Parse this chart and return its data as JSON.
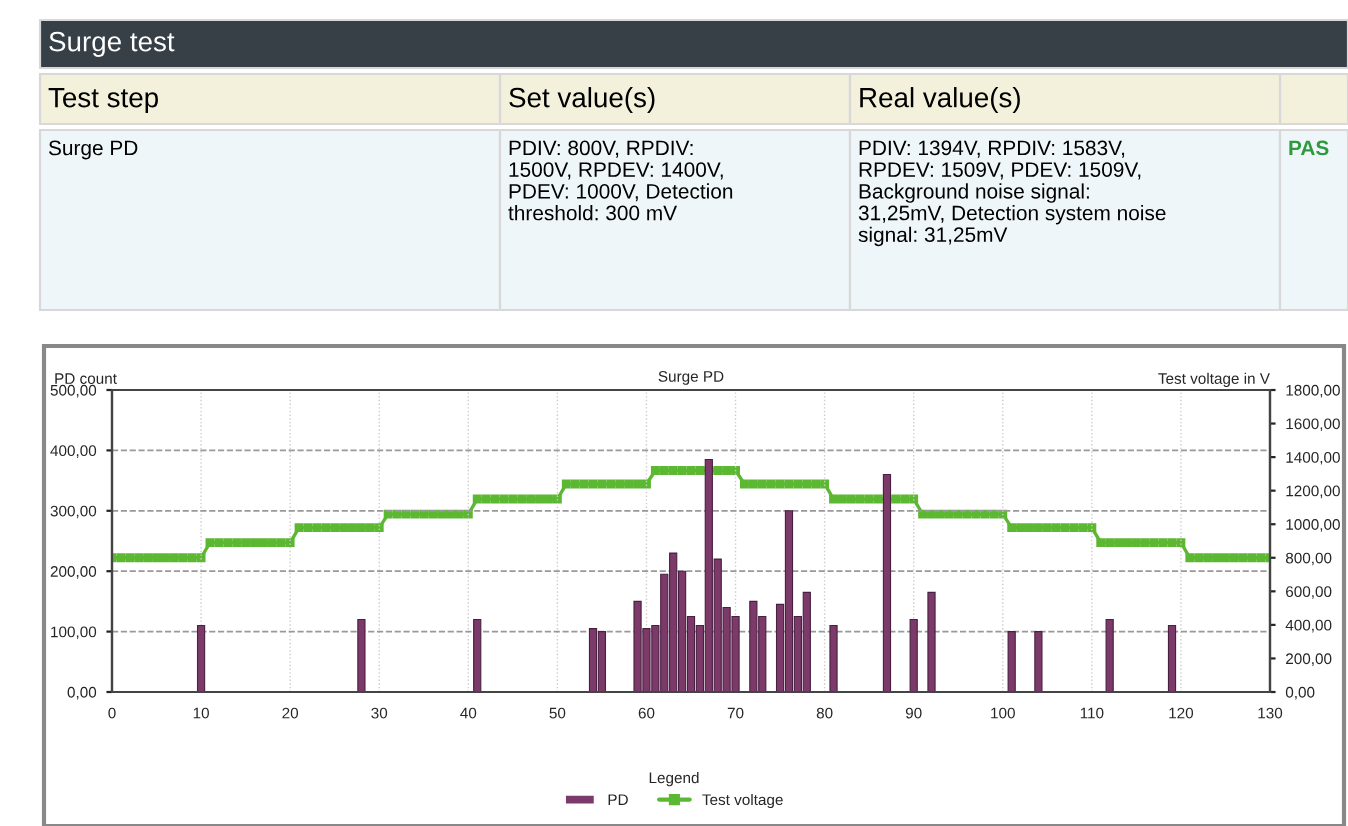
{
  "chart_data": {
    "type": "bar",
    "title": "Surge PD",
    "ylabel": "PD count",
    "y2label": "Test voltage in V",
    "legend_title": "Legend",
    "annotations": [
      "Surge test",
      "Test step",
      "Set value(s)",
      "Real value(s)",
      "Surge PD",
      "PDIV: 800V, RPDIV:\n1500V, RPDEV: 1400V,\nPDEV: 1000V, Detection\nthreshold: 300 mV",
      "PDIV: 1394V, RPDIV: 1583V,\nRPDEV: 1509V, PDEV: 1509V,\nBackground noise signal:\n31,25mV, Detection system noise\nsignal: 31,25mV",
      "PAS"
    ],
    "xlim": [
      0,
      130
    ],
    "xticks": [
      0,
      10,
      20,
      30,
      40,
      50,
      60,
      70,
      80,
      90,
      100,
      110,
      120,
      130
    ],
    "ylim": [
      0,
      500
    ],
    "yticks": [
      {
        "value": 0,
        "label": "0,00"
      },
      {
        "value": 100,
        "label": "100,00"
      },
      {
        "value": 200,
        "label": "200,00"
      },
      {
        "value": 300,
        "label": "300,00"
      },
      {
        "value": 400,
        "label": "400,00"
      },
      {
        "value": 500,
        "label": "500,00"
      }
    ],
    "y2lim": [
      0,
      1800
    ],
    "y2ticks": [
      {
        "value": 0,
        "label": "0,00"
      },
      {
        "value": 200,
        "label": "200,00"
      },
      {
        "value": 400,
        "label": "400,00"
      },
      {
        "value": 600,
        "label": "600,00"
      },
      {
        "value": 800,
        "label": "800,00"
      },
      {
        "value": 1000,
        "label": "1000,00"
      },
      {
        "value": 1200,
        "label": "1200,00"
      },
      {
        "value": 1400,
        "label": "1400,00"
      },
      {
        "value": 1600,
        "label": "1600,00"
      },
      {
        "value": 1800,
        "label": "1800,00"
      }
    ],
    "grid": true,
    "legend": "bottom",
    "series": [
      {
        "name": "PD",
        "color": "#7b3a6a",
        "x": [
          10,
          28,
          41,
          54,
          55,
          59,
          60,
          61,
          62,
          63,
          64,
          65,
          66,
          67,
          68,
          69,
          70,
          72,
          73,
          75,
          76,
          77,
          78,
          81,
          87,
          90,
          92,
          101,
          104,
          112,
          119
        ],
        "values": [
          110,
          120,
          120,
          105,
          100,
          150,
          105,
          110,
          195,
          230,
          200,
          125,
          110,
          385,
          220,
          140,
          125,
          150,
          125,
          145,
          300,
          125,
          165,
          110,
          360,
          120,
          165,
          100,
          100,
          120,
          110
        ]
      },
      {
        "name": "Test voltage",
        "type": "line",
        "axis": "y2",
        "color": "#5cb832",
        "marker": "square",
        "line_style": "solid",
        "x": [
          0,
          1,
          2,
          3,
          4,
          5,
          6,
          7,
          8,
          9,
          10,
          11,
          12,
          13,
          14,
          15,
          16,
          17,
          18,
          19,
          20,
          21,
          22,
          23,
          24,
          25,
          26,
          27,
          28,
          29,
          30,
          31,
          32,
          33,
          34,
          35,
          36,
          37,
          38,
          39,
          40,
          41,
          42,
          43,
          44,
          45,
          46,
          47,
          48,
          49,
          50,
          51,
          52,
          53,
          54,
          55,
          56,
          57,
          58,
          59,
          60,
          61,
          62,
          63,
          64,
          65,
          66,
          67,
          68,
          69,
          70,
          71,
          72,
          73,
          74,
          75,
          76,
          77,
          78,
          79,
          80,
          81,
          82,
          83,
          84,
          85,
          86,
          87,
          88,
          89,
          90,
          91,
          92,
          93,
          94,
          95,
          96,
          97,
          98,
          99,
          100,
          101,
          102,
          103,
          104,
          105,
          106,
          107,
          108,
          109,
          110,
          111,
          112,
          113,
          114,
          115,
          116,
          117,
          118,
          119,
          120,
          121,
          122,
          123,
          124,
          125,
          126,
          127,
          128,
          129,
          130
        ],
        "values": [
          800,
          800,
          800,
          800,
          800,
          800,
          800,
          800,
          800,
          800,
          800,
          890,
          890,
          890,
          890,
          890,
          890,
          890,
          890,
          890,
          890,
          980,
          980,
          980,
          980,
          980,
          980,
          980,
          980,
          980,
          980,
          1060,
          1060,
          1060,
          1060,
          1060,
          1060,
          1060,
          1060,
          1060,
          1060,
          1150,
          1150,
          1150,
          1150,
          1150,
          1150,
          1150,
          1150,
          1150,
          1150,
          1240,
          1240,
          1240,
          1240,
          1240,
          1240,
          1240,
          1240,
          1240,
          1240,
          1320,
          1320,
          1320,
          1320,
          1320,
          1320,
          1320,
          1320,
          1320,
          1320,
          1240,
          1240,
          1240,
          1240,
          1240,
          1240,
          1240,
          1240,
          1240,
          1240,
          1150,
          1150,
          1150,
          1150,
          1150,
          1150,
          1150,
          1150,
          1150,
          1150,
          1060,
          1060,
          1060,
          1060,
          1060,
          1060,
          1060,
          1060,
          1060,
          1060,
          980,
          980,
          980,
          980,
          980,
          980,
          980,
          980,
          980,
          980,
          890,
          890,
          890,
          890,
          890,
          890,
          890,
          890,
          890,
          890,
          800,
          800,
          800,
          800,
          800,
          800,
          800,
          800,
          800,
          800
        ]
      }
    ]
  }
}
